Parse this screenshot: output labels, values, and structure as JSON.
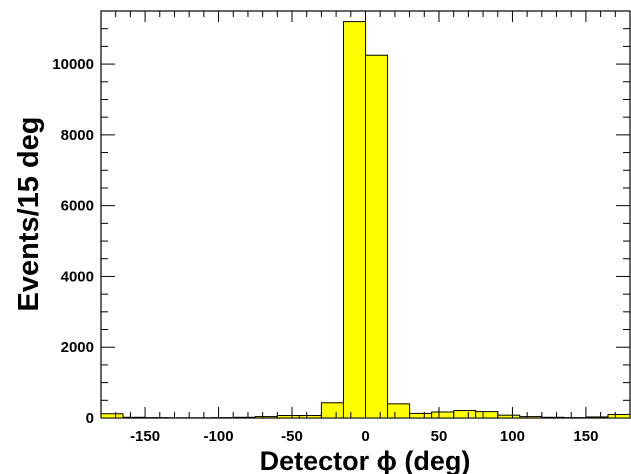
{
  "chart_data": {
    "type": "bar",
    "title": "",
    "xlabel": "Detector ϕ (deg)",
    "ylabel": "Events/15 deg",
    "xlim": [
      -180,
      180
    ],
    "ylim": [
      0,
      11500
    ],
    "bin_width": 15,
    "x_ticks": [
      -150,
      -100,
      -50,
      0,
      50,
      100,
      150
    ],
    "y_ticks": [
      0,
      2000,
      4000,
      6000,
      8000,
      10000
    ],
    "bins": [
      {
        "x0": -180,
        "x1": -165,
        "value": 120
      },
      {
        "x0": -165,
        "x1": -150,
        "value": 20
      },
      {
        "x0": -150,
        "x1": -135,
        "value": 10
      },
      {
        "x0": -135,
        "x1": -120,
        "value": 5
      },
      {
        "x0": -120,
        "x1": -105,
        "value": 5
      },
      {
        "x0": -105,
        "x1": -90,
        "value": 10
      },
      {
        "x0": -90,
        "x1": -75,
        "value": 20
      },
      {
        "x0": -75,
        "x1": -60,
        "value": 40
      },
      {
        "x0": -60,
        "x1": -45,
        "value": 70
      },
      {
        "x0": -45,
        "x1": -30,
        "value": 70
      },
      {
        "x0": -30,
        "x1": -15,
        "value": 430
      },
      {
        "x0": -15,
        "x1": 0,
        "value": 11200
      },
      {
        "x0": 0,
        "x1": 15,
        "value": 10250
      },
      {
        "x0": 15,
        "x1": 30,
        "value": 400
      },
      {
        "x0": 30,
        "x1": 45,
        "value": 130
      },
      {
        "x0": 45,
        "x1": 60,
        "value": 170
      },
      {
        "x0": 60,
        "x1": 75,
        "value": 210
      },
      {
        "x0": 75,
        "x1": 90,
        "value": 180
      },
      {
        "x0": 90,
        "x1": 105,
        "value": 80
      },
      {
        "x0": 105,
        "x1": 120,
        "value": 40
      },
      {
        "x0": 120,
        "x1": 135,
        "value": 20
      },
      {
        "x0": 135,
        "x1": 150,
        "value": 10
      },
      {
        "x0": 150,
        "x1": 165,
        "value": 30
      },
      {
        "x0": 165,
        "x1": 180,
        "value": 100
      }
    ],
    "grid": false,
    "colors": {
      "fill": "#ffff00",
      "stroke": "#000000"
    }
  }
}
